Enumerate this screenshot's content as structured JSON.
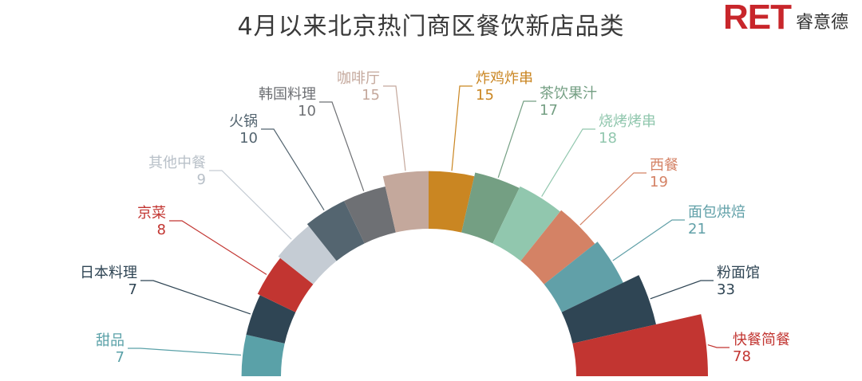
{
  "header": {
    "title": "4月以来北京热门商区餐饮新店品类",
    "logo_mark": "RET",
    "logo_text": "睿意德"
  },
  "chart_data": {
    "type": "nightingale-rose",
    "title": "4月以来北京热门商区餐饮新店品类",
    "categories": [
      "甜品",
      "日本料理",
      "京菜",
      "其他中餐",
      "火锅",
      "韩国料理",
      "咖啡厅",
      "炸鸡炸串",
      "茶饮果汁",
      "烧烤烤串",
      "西餐",
      "面包烘焙",
      "粉面馆",
      "快餐简餐"
    ],
    "values": [
      7,
      7,
      8,
      9,
      10,
      10,
      15,
      15,
      17,
      18,
      19,
      21,
      33,
      78
    ],
    "colors": [
      "#5aa1a8",
      "#2f4554",
      "#c23531",
      "#c5ccd4",
      "#546570",
      "#6e7074",
      "#c4a89c",
      "#ca8622",
      "#749f83",
      "#91c7ae",
      "#d48265",
      "#61a0a8",
      "#2f4554",
      "#c23531"
    ]
  }
}
